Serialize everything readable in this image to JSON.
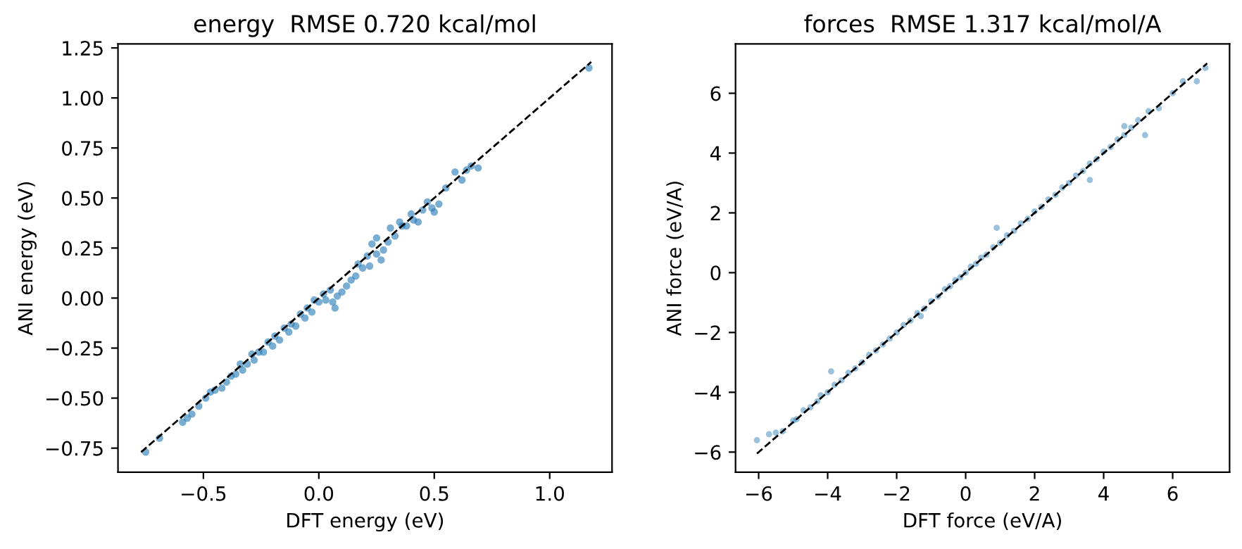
{
  "chart_data": [
    {
      "type": "scatter",
      "title": "energy  RMSE 0.720 kcal/mol",
      "xlabel": "DFT energy (eV)",
      "ylabel": "ANI energy (eV)",
      "xlim": [
        -0.87,
        1.27
      ],
      "ylim": [
        -0.87,
        1.27
      ],
      "xticks": [
        {
          "value": -0.5,
          "label": "−0.5"
        },
        {
          "value": 0.0,
          "label": "0.0"
        },
        {
          "value": 0.5,
          "label": "0.5"
        },
        {
          "value": 1.0,
          "label": "1.0"
        }
      ],
      "yticks": [
        {
          "value": -0.75,
          "label": "−0.75"
        },
        {
          "value": -0.5,
          "label": "−0.50"
        },
        {
          "value": -0.25,
          "label": "−0.25"
        },
        {
          "value": 0.0,
          "label": "0.00"
        },
        {
          "value": 0.25,
          "label": "0.25"
        },
        {
          "value": 0.5,
          "label": "0.50"
        },
        {
          "value": 0.75,
          "label": "0.75"
        },
        {
          "value": 1.0,
          "label": "1.00"
        },
        {
          "value": 1.25,
          "label": "1.25"
        }
      ],
      "grid": false,
      "series": [
        {
          "color": "#1f77b4",
          "marker": "circle",
          "x": [
            -0.75,
            -0.69,
            -0.59,
            -0.57,
            -0.55,
            -0.52,
            -0.49,
            -0.47,
            -0.45,
            -0.42,
            -0.4,
            -0.38,
            -0.36,
            -0.34,
            -0.33,
            -0.31,
            -0.29,
            -0.28,
            -0.26,
            -0.24,
            -0.22,
            -0.2,
            -0.19,
            -0.17,
            -0.15,
            -0.13,
            -0.12,
            -0.1,
            -0.08,
            -0.06,
            -0.05,
            -0.03,
            -0.02,
            0.0,
            0.02,
            0.03,
            0.05,
            0.06,
            0.07,
            0.08,
            0.1,
            0.12,
            0.14,
            0.16,
            0.17,
            0.19,
            0.21,
            0.22,
            0.23,
            0.25,
            0.25,
            0.27,
            0.28,
            0.3,
            0.31,
            0.33,
            0.35,
            0.36,
            0.38,
            0.4,
            0.41,
            0.43,
            0.45,
            0.47,
            0.49,
            0.5,
            0.52,
            0.55,
            0.59,
            0.62,
            0.64,
            0.66,
            0.69,
            1.17
          ],
          "values": [
            -0.77,
            -0.7,
            -0.62,
            -0.6,
            -0.58,
            -0.54,
            -0.5,
            -0.47,
            -0.46,
            -0.45,
            -0.42,
            -0.39,
            -0.38,
            -0.33,
            -0.36,
            -0.33,
            -0.28,
            -0.31,
            -0.27,
            -0.27,
            -0.22,
            -0.24,
            -0.19,
            -0.21,
            -0.15,
            -0.17,
            -0.13,
            -0.14,
            -0.08,
            -0.1,
            -0.05,
            -0.07,
            -0.01,
            -0.02,
            0.02,
            -0.01,
            0.04,
            -0.02,
            -0.05,
            0.01,
            0.03,
            0.06,
            0.09,
            0.11,
            0.17,
            0.15,
            0.21,
            0.16,
            0.27,
            0.22,
            0.3,
            0.19,
            0.24,
            0.28,
            0.35,
            0.31,
            0.38,
            0.36,
            0.36,
            0.42,
            0.39,
            0.38,
            0.44,
            0.48,
            0.45,
            0.43,
            0.47,
            0.55,
            0.63,
            0.59,
            0.64,
            0.66,
            0.65,
            1.15
          ]
        },
        {
          "type": "line",
          "color": "#000000",
          "line_style": "dashed",
          "marker": "none",
          "x": [
            -0.77,
            1.18
          ],
          "values": [
            -0.77,
            1.18
          ]
        }
      ]
    },
    {
      "type": "scatter",
      "title": "forces  RMSE 1.317 kcal/mol/A",
      "xlabel": "DFT force (eV/A)",
      "ylabel": "ANI force (eV/A)",
      "xlim": [
        -6.67,
        7.65
      ],
      "ylim": [
        -6.67,
        7.65
      ],
      "xticks": [
        {
          "value": -6,
          "label": "−6"
        },
        {
          "value": -4,
          "label": "−4"
        },
        {
          "value": -2,
          "label": "−2"
        },
        0,
        2,
        4,
        6
      ],
      "yticks": [
        {
          "value": -6,
          "label": "−6"
        },
        {
          "value": -4,
          "label": "−4"
        },
        {
          "value": -2,
          "label": "−2"
        },
        0,
        2,
        4,
        6
      ],
      "grid": false,
      "series": [
        {
          "color": "#1f77b4",
          "marker": "circle",
          "x": [
            -6.05,
            -5.7,
            -5.5,
            -5.3,
            -5.0,
            -4.9,
            -4.7,
            -4.5,
            -4.3,
            -4.2,
            -4.0,
            -3.8,
            -3.6,
            -3.4,
            -3.2,
            -3.0,
            -2.8,
            -2.6,
            -2.4,
            -2.2,
            -2.0,
            -1.8,
            -1.6,
            -1.4,
            -1.2,
            -1.0,
            -0.8,
            -0.6,
            -0.45,
            -0.3,
            -0.15,
            0.0,
            0.15,
            0.3,
            0.45,
            0.6,
            0.8,
            1.0,
            1.2,
            1.4,
            1.6,
            1.8,
            2.0,
            2.2,
            2.4,
            2.6,
            2.8,
            3.0,
            3.2,
            3.4,
            3.6,
            3.8,
            4.0,
            4.2,
            4.4,
            4.6,
            4.8,
            5.0,
            5.2,
            5.3,
            5.6,
            6.0,
            6.3,
            6.7,
            6.95,
            -3.9,
            -1.3,
            0.9,
            3.6,
            4.6
          ],
          "values": [
            -5.6,
            -5.4,
            -5.35,
            -5.3,
            -4.95,
            -4.9,
            -4.6,
            -4.5,
            -4.3,
            -4.1,
            -4.0,
            -3.75,
            -3.6,
            -3.35,
            -3.2,
            -3.0,
            -2.75,
            -2.6,
            -2.4,
            -2.2,
            -2.0,
            -1.75,
            -1.6,
            -1.35,
            -1.2,
            -0.95,
            -0.8,
            -0.55,
            -0.45,
            -0.25,
            -0.15,
            0.0,
            0.2,
            0.3,
            0.5,
            0.6,
            0.85,
            1.0,
            1.25,
            1.4,
            1.65,
            1.8,
            2.05,
            2.2,
            2.45,
            2.6,
            2.85,
            3.0,
            3.25,
            3.4,
            3.65,
            3.8,
            4.05,
            4.2,
            4.45,
            4.6,
            4.85,
            5.1,
            4.6,
            5.4,
            5.5,
            6.0,
            6.4,
            6.4,
            6.85,
            -3.3,
            -1.45,
            1.5,
            3.1,
            4.9
          ]
        },
        {
          "type": "line",
          "color": "#000000",
          "line_style": "dashed",
          "marker": "none",
          "x": [
            -6.05,
            7.0
          ],
          "values": [
            -6.05,
            7.0
          ]
        }
      ]
    }
  ]
}
